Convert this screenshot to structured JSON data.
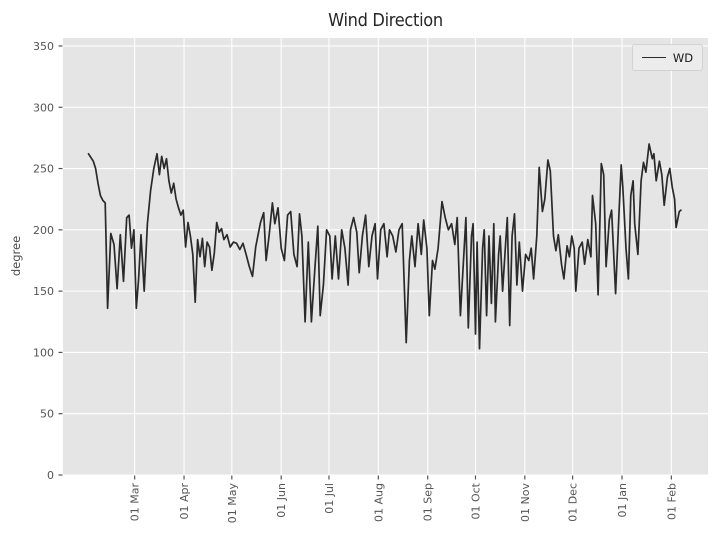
{
  "figure": {
    "title": "Wind Direction",
    "ylabel": "degree"
  },
  "colors": {
    "figure_bg": "#ffffff",
    "plot_bg": "#e5e5e5",
    "grid": "#ffffff",
    "line": "#2a2a2a",
    "tick_text": "#555555",
    "tick_mark": "#555555",
    "title_text": "#262626",
    "legend_bg": "#ececec",
    "legend_border": "#d2d2d2"
  },
  "chart_data": {
    "type": "line",
    "title": "Wind Direction",
    "xlabel": "",
    "ylabel": "degree",
    "grid": true,
    "legend_position": "upper right",
    "ylim": [
      0,
      356.5
    ],
    "yticks": [
      0,
      50,
      100,
      150,
      200,
      250,
      300,
      350
    ],
    "xlim_days": [
      -16,
      389
    ],
    "xticks": [
      {
        "day": 29,
        "label": "01 Mar"
      },
      {
        "day": 60,
        "label": "01 Apr"
      },
      {
        "day": 90,
        "label": "01 May"
      },
      {
        "day": 121,
        "label": "01 Jun"
      },
      {
        "day": 151,
        "label": "01 Jul"
      },
      {
        "day": 182,
        "label": "01 Aug"
      },
      {
        "day": 213,
        "label": "01 Sep"
      },
      {
        "day": 243,
        "label": "01 Oct"
      },
      {
        "day": 274,
        "label": "01 Nov"
      },
      {
        "day": 304,
        "label": "01 Dec"
      },
      {
        "day": 335,
        "label": "01 Jan"
      },
      {
        "day": 366,
        "label": "01 Feb"
      }
    ],
    "series": [
      {
        "name": "WD",
        "color": "#2a2a2a",
        "points": [
          [
            0,
            262
          ],
          [
            1.5,
            259
          ],
          [
            3,
            256
          ],
          [
            4.5,
            250
          ],
          [
            6,
            238
          ],
          [
            7.5,
            228
          ],
          [
            9,
            224
          ],
          [
            10.5,
            222
          ],
          [
            12,
            136
          ],
          [
            14,
            197
          ],
          [
            16,
            188
          ],
          [
            18,
            152
          ],
          [
            20,
            196
          ],
          [
            22,
            158
          ],
          [
            24,
            210
          ],
          [
            25.5,
            212
          ],
          [
            27,
            185
          ],
          [
            28.5,
            200
          ],
          [
            30,
            136
          ],
          [
            31.5,
            160
          ],
          [
            33,
            196
          ],
          [
            35,
            150
          ],
          [
            37,
            205
          ],
          [
            39,
            232
          ],
          [
            41,
            250
          ],
          [
            43,
            262
          ],
          [
            44.5,
            245
          ],
          [
            46,
            260
          ],
          [
            47.5,
            250
          ],
          [
            49,
            258
          ],
          [
            50.5,
            240
          ],
          [
            52,
            230
          ],
          [
            53.5,
            238
          ],
          [
            55,
            225
          ],
          [
            56.5,
            218
          ],
          [
            58,
            212
          ],
          [
            59.5,
            216
          ],
          [
            61,
            186
          ],
          [
            62.5,
            206
          ],
          [
            64,
            195
          ],
          [
            65.5,
            180
          ],
          [
            67,
            141
          ],
          [
            68.5,
            192
          ],
          [
            70,
            178
          ],
          [
            71.5,
            193
          ],
          [
            73,
            170
          ],
          [
            74.5,
            190
          ],
          [
            76,
            186
          ],
          [
            77.5,
            167
          ],
          [
            79,
            181
          ],
          [
            80.5,
            206
          ],
          [
            82,
            198
          ],
          [
            83.5,
            201
          ],
          [
            85,
            192
          ],
          [
            87,
            196
          ],
          [
            89,
            186
          ],
          [
            91,
            190
          ],
          [
            93,
            189
          ],
          [
            95,
            184
          ],
          [
            97,
            189
          ],
          [
            99,
            180
          ],
          [
            101,
            170
          ],
          [
            103,
            162
          ],
          [
            105,
            186
          ],
          [
            106.5,
            196
          ],
          [
            108,
            206
          ],
          [
            110,
            214
          ],
          [
            111.5,
            175
          ],
          [
            113.5,
            196
          ],
          [
            115.5,
            222
          ],
          [
            117,
            205
          ],
          [
            119,
            218
          ],
          [
            121,
            185
          ],
          [
            123,
            175
          ],
          [
            125,
            212
          ],
          [
            127,
            215
          ],
          [
            129,
            180
          ],
          [
            131,
            170
          ],
          [
            132.5,
            213
          ],
          [
            134,
            195
          ],
          [
            136,
            125
          ],
          [
            138,
            190
          ],
          [
            140,
            125
          ],
          [
            142,
            165
          ],
          [
            144,
            203
          ],
          [
            145.5,
            130
          ],
          [
            147.5,
            155
          ],
          [
            149.5,
            200
          ],
          [
            151.5,
            195
          ],
          [
            153,
            160
          ],
          [
            155,
            195
          ],
          [
            157,
            160
          ],
          [
            159,
            200
          ],
          [
            161,
            185
          ],
          [
            163,
            155
          ],
          [
            164.5,
            200
          ],
          [
            166.5,
            210
          ],
          [
            168.5,
            198
          ],
          [
            170,
            165
          ],
          [
            172,
            195
          ],
          [
            174,
            212
          ],
          [
            176,
            170
          ],
          [
            178,
            195
          ],
          [
            180,
            205
          ],
          [
            181.5,
            160
          ],
          [
            183.5,
            200
          ],
          [
            185.5,
            205
          ],
          [
            187.5,
            178
          ],
          [
            189,
            200
          ],
          [
            191,
            195
          ],
          [
            193,
            182
          ],
          [
            195,
            200
          ],
          [
            197,
            205
          ],
          [
            199.5,
            108
          ],
          [
            201.5,
            175
          ],
          [
            203,
            195
          ],
          [
            205,
            170
          ],
          [
            207,
            205
          ],
          [
            209,
            180
          ],
          [
            210.5,
            208
          ],
          [
            212.5,
            185
          ],
          [
            214,
            130
          ],
          [
            216,
            175
          ],
          [
            217.5,
            168
          ],
          [
            219.5,
            185
          ],
          [
            222,
            223
          ],
          [
            224,
            210
          ],
          [
            226,
            200
          ],
          [
            228,
            205
          ],
          [
            230,
            188
          ],
          [
            231.5,
            210
          ],
          [
            233.5,
            130
          ],
          [
            235.5,
            175
          ],
          [
            237,
            210
          ],
          [
            238.5,
            120
          ],
          [
            240.5,
            195
          ],
          [
            241.5,
            205
          ],
          [
            243,
            115
          ],
          [
            244,
            190
          ],
          [
            245.5,
            103
          ],
          [
            247.5,
            185
          ],
          [
            248.5,
            200
          ],
          [
            250,
            130
          ],
          [
            251.5,
            195
          ],
          [
            253,
            140
          ],
          [
            254.5,
            205
          ],
          [
            255.5,
            125
          ],
          [
            257.5,
            180
          ],
          [
            258.5,
            195
          ],
          [
            260,
            150
          ],
          [
            262,
            190
          ],
          [
            263,
            210
          ],
          [
            264.5,
            122
          ],
          [
            266,
            195
          ],
          [
            267.5,
            213
          ],
          [
            269,
            155
          ],
          [
            270.5,
            190
          ],
          [
            272.5,
            150
          ],
          [
            274.5,
            180
          ],
          [
            276.5,
            175
          ],
          [
            278,
            185
          ],
          [
            279.5,
            160
          ],
          [
            281.5,
            195
          ],
          [
            283,
            251
          ],
          [
            285,
            215
          ],
          [
            286.5,
            225
          ],
          [
            288.5,
            257
          ],
          [
            290,
            248
          ],
          [
            292,
            195
          ],
          [
            293.5,
            183
          ],
          [
            295,
            196
          ],
          [
            297,
            172
          ],
          [
            298.5,
            160
          ],
          [
            300.5,
            187
          ],
          [
            302,
            178
          ],
          [
            303.5,
            195
          ],
          [
            305,
            185
          ],
          [
            306,
            150
          ],
          [
            308,
            185
          ],
          [
            310,
            190
          ],
          [
            311.5,
            172
          ],
          [
            313.5,
            192
          ],
          [
            315.5,
            178
          ],
          [
            316.5,
            228
          ],
          [
            318.5,
            205
          ],
          [
            320,
            147
          ],
          [
            322,
            254
          ],
          [
            323.5,
            245
          ],
          [
            325,
            170
          ],
          [
            327,
            208
          ],
          [
            328.5,
            216
          ],
          [
            330,
            175
          ],
          [
            331,
            148
          ],
          [
            333,
            210
          ],
          [
            334.5,
            253
          ],
          [
            335.5,
            235
          ],
          [
            337.5,
            185
          ],
          [
            339,
            160
          ],
          [
            340.5,
            228
          ],
          [
            342,
            240
          ],
          [
            343,
            205
          ],
          [
            345,
            180
          ],
          [
            347,
            240
          ],
          [
            348.5,
            255
          ],
          [
            350,
            247
          ],
          [
            352,
            270
          ],
          [
            354,
            258
          ],
          [
            355,
            262
          ],
          [
            356.5,
            240
          ],
          [
            358.5,
            256
          ],
          [
            360,
            245
          ],
          [
            361.5,
            220
          ],
          [
            363.5,
            243
          ],
          [
            365,
            250
          ],
          [
            366.5,
            235
          ],
          [
            368,
            225
          ],
          [
            369,
            202
          ],
          [
            371,
            215
          ],
          [
            372,
            216
          ]
        ]
      }
    ]
  }
}
